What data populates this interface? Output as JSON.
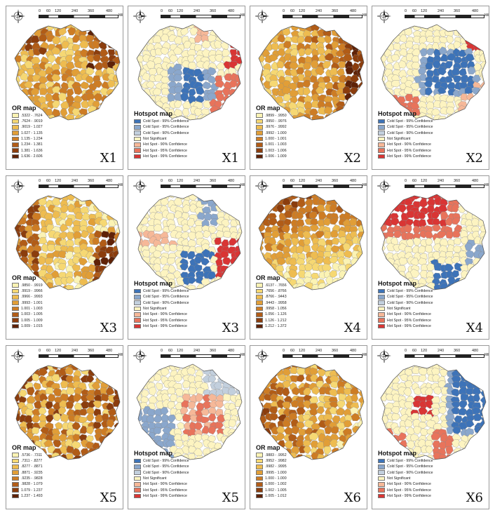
{
  "scale": {
    "ticks": [
      "0",
      "60",
      "120",
      "240",
      "360",
      "480"
    ],
    "unit": "Miles"
  },
  "colors": {
    "or_ramp": [
      "#fbf3b4",
      "#f6d873",
      "#eebc50",
      "#e19e37",
      "#cd7c24",
      "#b15c17",
      "#8b3d0d",
      "#5f2207"
    ],
    "hotspot": [
      "#3d73b8",
      "#8aa7cc",
      "#c2cfdd",
      "#fdf4c1",
      "#f6b898",
      "#e8735b",
      "#d93534"
    ],
    "boundary": "#8a8a8a"
  },
  "hotspot_legend": {
    "title": "Hotspot map",
    "items": [
      "Cold Spot - 99% Confidence",
      "Cold Spot - 95% Confidence",
      "Cold Spot - 90% Confidence",
      "Not Significant",
      "Hot Spot - 90% Confidence",
      "Hot Spot - 95% Confidence",
      "Hot Spot - 99% Confidence"
    ]
  },
  "panels": [
    {
      "variable": "X1",
      "type": "or",
      "legend_title": "OR map",
      "classes": [
        ".5322 - .7624",
        ".7624 - .9019",
        ".9019 - 1.027",
        "1.027 - 1.135",
        "1.135 - 1.234",
        "1.234 - 1.381",
        "1.381 - 1.636",
        "1.636 - 2.606"
      ]
    },
    {
      "variable": "X1",
      "type": "hotspot",
      "legend_title": "Hotspot map"
    },
    {
      "variable": "X2",
      "type": "or",
      "legend_title": "OR map",
      "classes": [
        ".9899 - .9950",
        ".9950 - .9976",
        ".9976 - .9992",
        ".9992 - 1.000",
        "1.000 - 1.001",
        "1.001 - 1.003",
        "1.003 - 1.006",
        "1.006 - 1.009"
      ]
    },
    {
      "variable": "X2",
      "type": "hotspot",
      "legend_title": "Hotspot map"
    },
    {
      "variable": "X3",
      "type": "or",
      "legend_title": "OR map",
      "classes": [
        ".9850 - .9919",
        ".9919 - .9966",
        ".9966 - .9993",
        ".9993 - 1.001",
        "1.001 - 1.003",
        "1.003 - 1.005",
        "1.005 - 1.009",
        "1.009 - 1.015"
      ]
    },
    {
      "variable": "X3",
      "type": "hotspot",
      "legend_title": "Hotspot map"
    },
    {
      "variable": "X4",
      "type": "or",
      "legend_title": "OR map",
      "classes": [
        ".6137 - .7656",
        ".7656 - .8766",
        ".8766 - .9443",
        ".9443 - .9958",
        ".9958 - 1.056",
        "1.056 - 1.126",
        "1.126 - 1.212",
        "1.212 - 1.372"
      ]
    },
    {
      "variable": "X4",
      "type": "hotspot",
      "legend_title": "Hotspot map"
    },
    {
      "variable": "X5",
      "type": "or",
      "legend_title": "OR map",
      "classes": [
        ".5736 - .7311",
        ".7311 - .8277",
        ".8277 - .8871",
        ".8871 - .9235",
        ".9235 - .9828",
        ".9828 - 1.079",
        "1.079 - 1.237",
        "1.237 - 1.493"
      ]
    },
    {
      "variable": "X5",
      "type": "hotspot",
      "legend_title": "Hotspot map"
    },
    {
      "variable": "X6",
      "type": "or",
      "legend_title": "OR map",
      "classes": [
        ".9883 - .9952",
        ".9952 - .9982",
        ".9982 - .9995",
        ".9995 - 1.000",
        "1.000 - 1.000",
        "1.000 - 1.002",
        "1.002 - 1.005",
        "1.005 - 1.012"
      ]
    },
    {
      "variable": "X6",
      "type": "hotspot",
      "legend_title": "Hotspot map"
    }
  ]
}
